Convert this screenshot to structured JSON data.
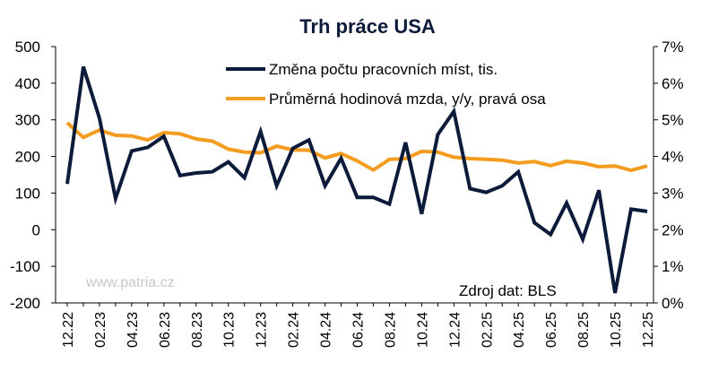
{
  "chart_data": {
    "type": "line",
    "title": "Trh práce USA",
    "source": "Zdroj dat: BLS",
    "watermark": "www.patria.cz",
    "legend_position": "top-right",
    "grid": false,
    "x": [
      "12.22",
      "01.23",
      "02.23",
      "03.23",
      "04.23",
      "05.23",
      "06.23",
      "07.23",
      "08.23",
      "09.23",
      "10.23",
      "11.23",
      "12.23",
      "01.24",
      "02.24",
      "03.24",
      "04.24",
      "05.24",
      "06.24",
      "07.24",
      "08.24",
      "09.24",
      "10.24",
      "11.24",
      "12.24",
      "01.25",
      "02.25",
      "03.25",
      "04.25",
      "05.25",
      "06.25",
      "07.25",
      "08.25",
      "09.25",
      "10.25",
      "11.25",
      "12.25"
    ],
    "x_tick_labels": [
      "12.22",
      "02.23",
      "04.23",
      "06.23",
      "08.23",
      "10.23",
      "12.23",
      "02.24",
      "04.24",
      "06.24",
      "08.24",
      "10.24",
      "12.24",
      "02.25",
      "04.25",
      "06.25",
      "08.25",
      "10.25",
      "12.25"
    ],
    "y_left": {
      "min": -200,
      "max": 500,
      "ticks": [
        "500",
        "400",
        "300",
        "200",
        "100",
        "0",
        "-100",
        "-200"
      ]
    },
    "y_right": {
      "min": 0,
      "max": 7,
      "ticks": [
        "7%",
        "6%",
        "5%",
        "4%",
        "3%",
        "2%",
        "1%",
        "0%"
      ]
    },
    "series": [
      {
        "name": "Změna počtu pracovních míst, tis.",
        "axis": "left",
        "color": "#0d1b3a",
        "values": [
          125,
          445,
          305,
          85,
          215,
          225,
          255,
          148,
          155,
          158,
          185,
          142,
          268,
          120,
          222,
          245,
          120,
          195,
          88,
          88,
          70,
          238,
          43,
          260,
          323,
          112,
          102,
          120,
          158,
          19,
          -13,
          73,
          -26,
          108,
          -173,
          56,
          50
        ]
      },
      {
        "name": "Průměrná hodinová mzda, y/y, pravá osa",
        "axis": "right",
        "color": "#f39c1f",
        "values": [
          4.92,
          4.52,
          4.72,
          4.58,
          4.56,
          4.45,
          4.65,
          4.62,
          4.48,
          4.42,
          4.2,
          4.12,
          4.1,
          4.28,
          4.18,
          4.17,
          3.96,
          4.08,
          3.88,
          3.63,
          3.92,
          3.94,
          4.14,
          4.12,
          3.98,
          3.94,
          3.92,
          3.9,
          3.82,
          3.86,
          3.75,
          3.87,
          3.82,
          3.72,
          3.74,
          3.62,
          3.74
        ]
      }
    ]
  }
}
